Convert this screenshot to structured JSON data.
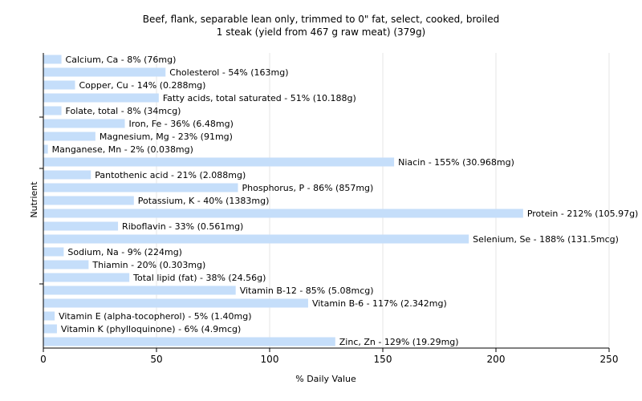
{
  "chart_data": {
    "type": "bar",
    "orientation": "horizontal",
    "title": "Beef, flank, separable lean only, trimmed to 0\" fat, select, cooked, broiled",
    "subtitle": "1 steak (yield from 467 g raw meat) (379g)",
    "xlabel": "% Daily Value",
    "ylabel": "Nutrient",
    "xlim": [
      0,
      250
    ],
    "xticks": [
      0,
      50,
      100,
      150,
      200,
      250
    ],
    "grid": true,
    "bar_color": "#c5defa",
    "categories": [
      "Calcium, Ca",
      "Cholesterol",
      "Copper, Cu",
      "Fatty acids, total saturated",
      "Folate, total",
      "Iron, Fe",
      "Magnesium, Mg",
      "Manganese, Mn",
      "Niacin",
      "Pantothenic acid",
      "Phosphorus, P",
      "Potassium, K",
      "Protein",
      "Riboflavin",
      "Selenium, Se",
      "Sodium, Na",
      "Thiamin",
      "Total lipid (fat)",
      "Vitamin B-12",
      "Vitamin B-6",
      "Vitamin E (alpha-tocopherol)",
      "Vitamin K (phylloquinone)",
      "Zinc, Zn"
    ],
    "values": [
      8,
      54,
      14,
      51,
      8,
      36,
      23,
      2,
      155,
      21,
      86,
      40,
      212,
      33,
      188,
      9,
      20,
      38,
      85,
      117,
      5,
      6,
      129
    ],
    "labels": [
      "Calcium, Ca - 8% (76mg)",
      "Cholesterol - 54% (163mg)",
      "Copper, Cu - 14% (0.288mg)",
      "Fatty acids, total saturated - 51% (10.188g)",
      "Folate, total - 8% (34mcg)",
      "Iron, Fe - 36% (6.48mg)",
      "Magnesium, Mg - 23% (91mg)",
      "Manganese, Mn - 2% (0.038mg)",
      "Niacin - 155% (30.968mg)",
      "Pantothenic acid - 21% (2.088mg)",
      "Phosphorus, P - 86% (857mg)",
      "Potassium, K - 40% (1383mg)",
      "Protein - 212% (105.97g)",
      "Riboflavin - 33% (0.561mg)",
      "Selenium, Se - 188% (131.5mcg)",
      "Sodium, Na - 9% (224mg)",
      "Thiamin - 20% (0.303mg)",
      "Total lipid (fat) - 38% (24.56g)",
      "Vitamin B-12 - 85% (5.08mcg)",
      "Vitamin B-6 - 117% (2.342mg)",
      "Vitamin E (alpha-tocopherol) - 5% (1.40mg)",
      "Vitamin K (phylloquinone) - 6% (4.9mcg)",
      "Zinc, Zn - 129% (19.29mg)"
    ]
  }
}
